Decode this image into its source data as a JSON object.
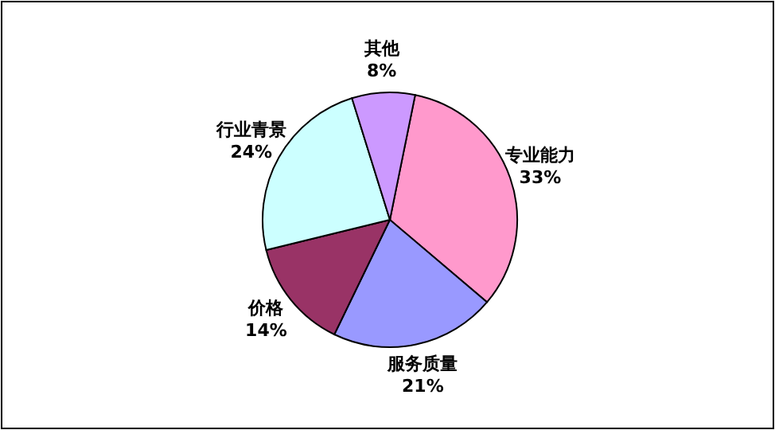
{
  "chart_data": {
    "type": "pie",
    "categories": [
      "专业能力",
      "服务质量",
      "价格",
      "行业青景",
      "其他"
    ],
    "values": [
      33,
      21,
      14,
      24,
      8
    ],
    "colors": [
      "#ff99cc",
      "#9999ff",
      "#993366",
      "#ccffff",
      "#cc99ff"
    ],
    "value_labels": [
      "33%",
      "21%",
      "14%",
      "24%",
      "8%"
    ]
  }
}
